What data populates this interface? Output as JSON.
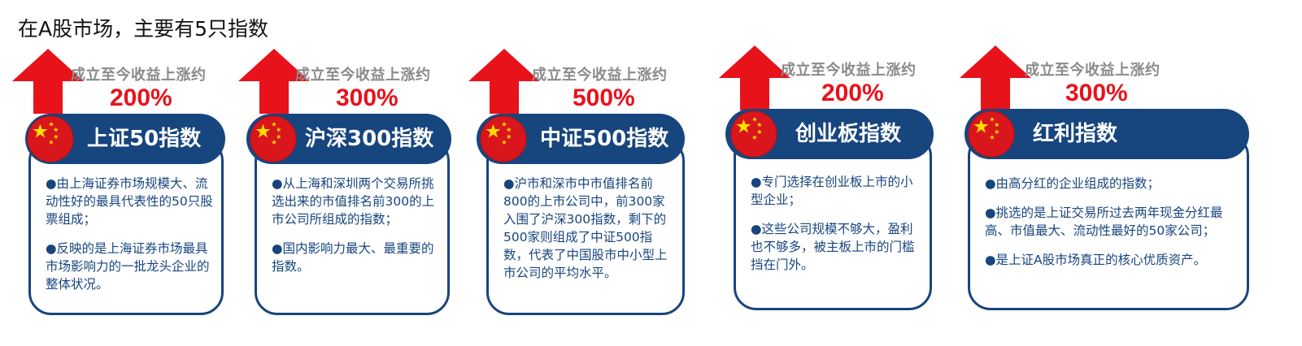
{
  "page_title": "在A股市场，主要有5只指数",
  "colors": {
    "navy": "#17457e",
    "red": "#e8121b",
    "gray": "#8a8a8a"
  },
  "indices": [
    {
      "name": "上证50指数",
      "gain_caption": "成立至今收益上涨约",
      "gain_value": "200%",
      "bullets": [
        "●由上海证券市场规模大、流动性好的最具代表性的50只股票组成；",
        "●反映的是上海证券市场最具市场影响力的一批龙头企业的整体状况。"
      ]
    },
    {
      "name": "沪深300指数",
      "gain_caption": "成立至今收益上涨约",
      "gain_value": "300%",
      "bullets": [
        "●从上海和深圳两个交易所挑选出来的市值排名前300的上市公司所组成的指数；",
        "●国内影响力最大、最重要的指数。"
      ]
    },
    {
      "name": "中证500指数",
      "gain_caption": "成立至今收益上涨约",
      "gain_value": "500%",
      "bullets": [
        "●沪市和深市中市值排名前800的上市公司中，前300家入围了沪深300指数，剩下的500家则组成了中证500指数，代表了中国股市中小型上市公司的平均水平。"
      ]
    },
    {
      "name": "创业板指数",
      "gain_caption": "成立至今收益上涨约",
      "gain_value": "200%",
      "bullets": [
        "●专门选择在创业板上市的小型企业；",
        "●这些公司规模不够大，盈利也不够多，被主板上市的门槛挡在门外。"
      ]
    },
    {
      "name": "红利指数",
      "gain_caption": "成立至今收益上涨约",
      "gain_value": "300%",
      "bullets": [
        "●由高分红的企业组成的指数；",
        "●挑选的是上证交易所过去两年现金分红最高、市值最大、流动性最好的50家公司；",
        "●是上证A股市场真正的核心优质资产。"
      ]
    }
  ]
}
